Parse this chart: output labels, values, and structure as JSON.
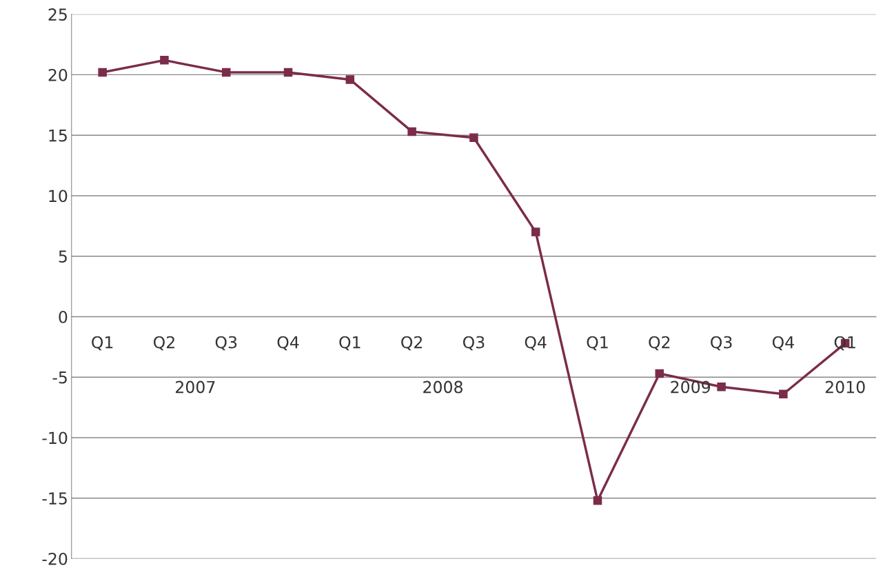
{
  "chart_data": {
    "type": "line",
    "categories": [
      "Q1",
      "Q2",
      "Q3",
      "Q4",
      "Q1",
      "Q2",
      "Q3",
      "Q4",
      "Q1",
      "Q2",
      "Q3",
      "Q4",
      "Q1"
    ],
    "series": [
      {
        "color": "#7b2c4a",
        "values": [
          20.2,
          21.2,
          20.2,
          20.2,
          19.6,
          15.3,
          14.8,
          7.0,
          -15.2,
          -4.7,
          -5.8,
          -6.4,
          -2.2
        ]
      }
    ],
    "annotations": [
      "2007",
      "2008",
      "2009",
      "2010"
    ],
    "ylim": [
      -20,
      25
    ],
    "yticks": [
      -20,
      -15,
      -10,
      -5,
      0,
      5,
      10,
      15,
      20,
      25
    ],
    "grid": "y",
    "marker": "square",
    "line_style": "solid"
  }
}
